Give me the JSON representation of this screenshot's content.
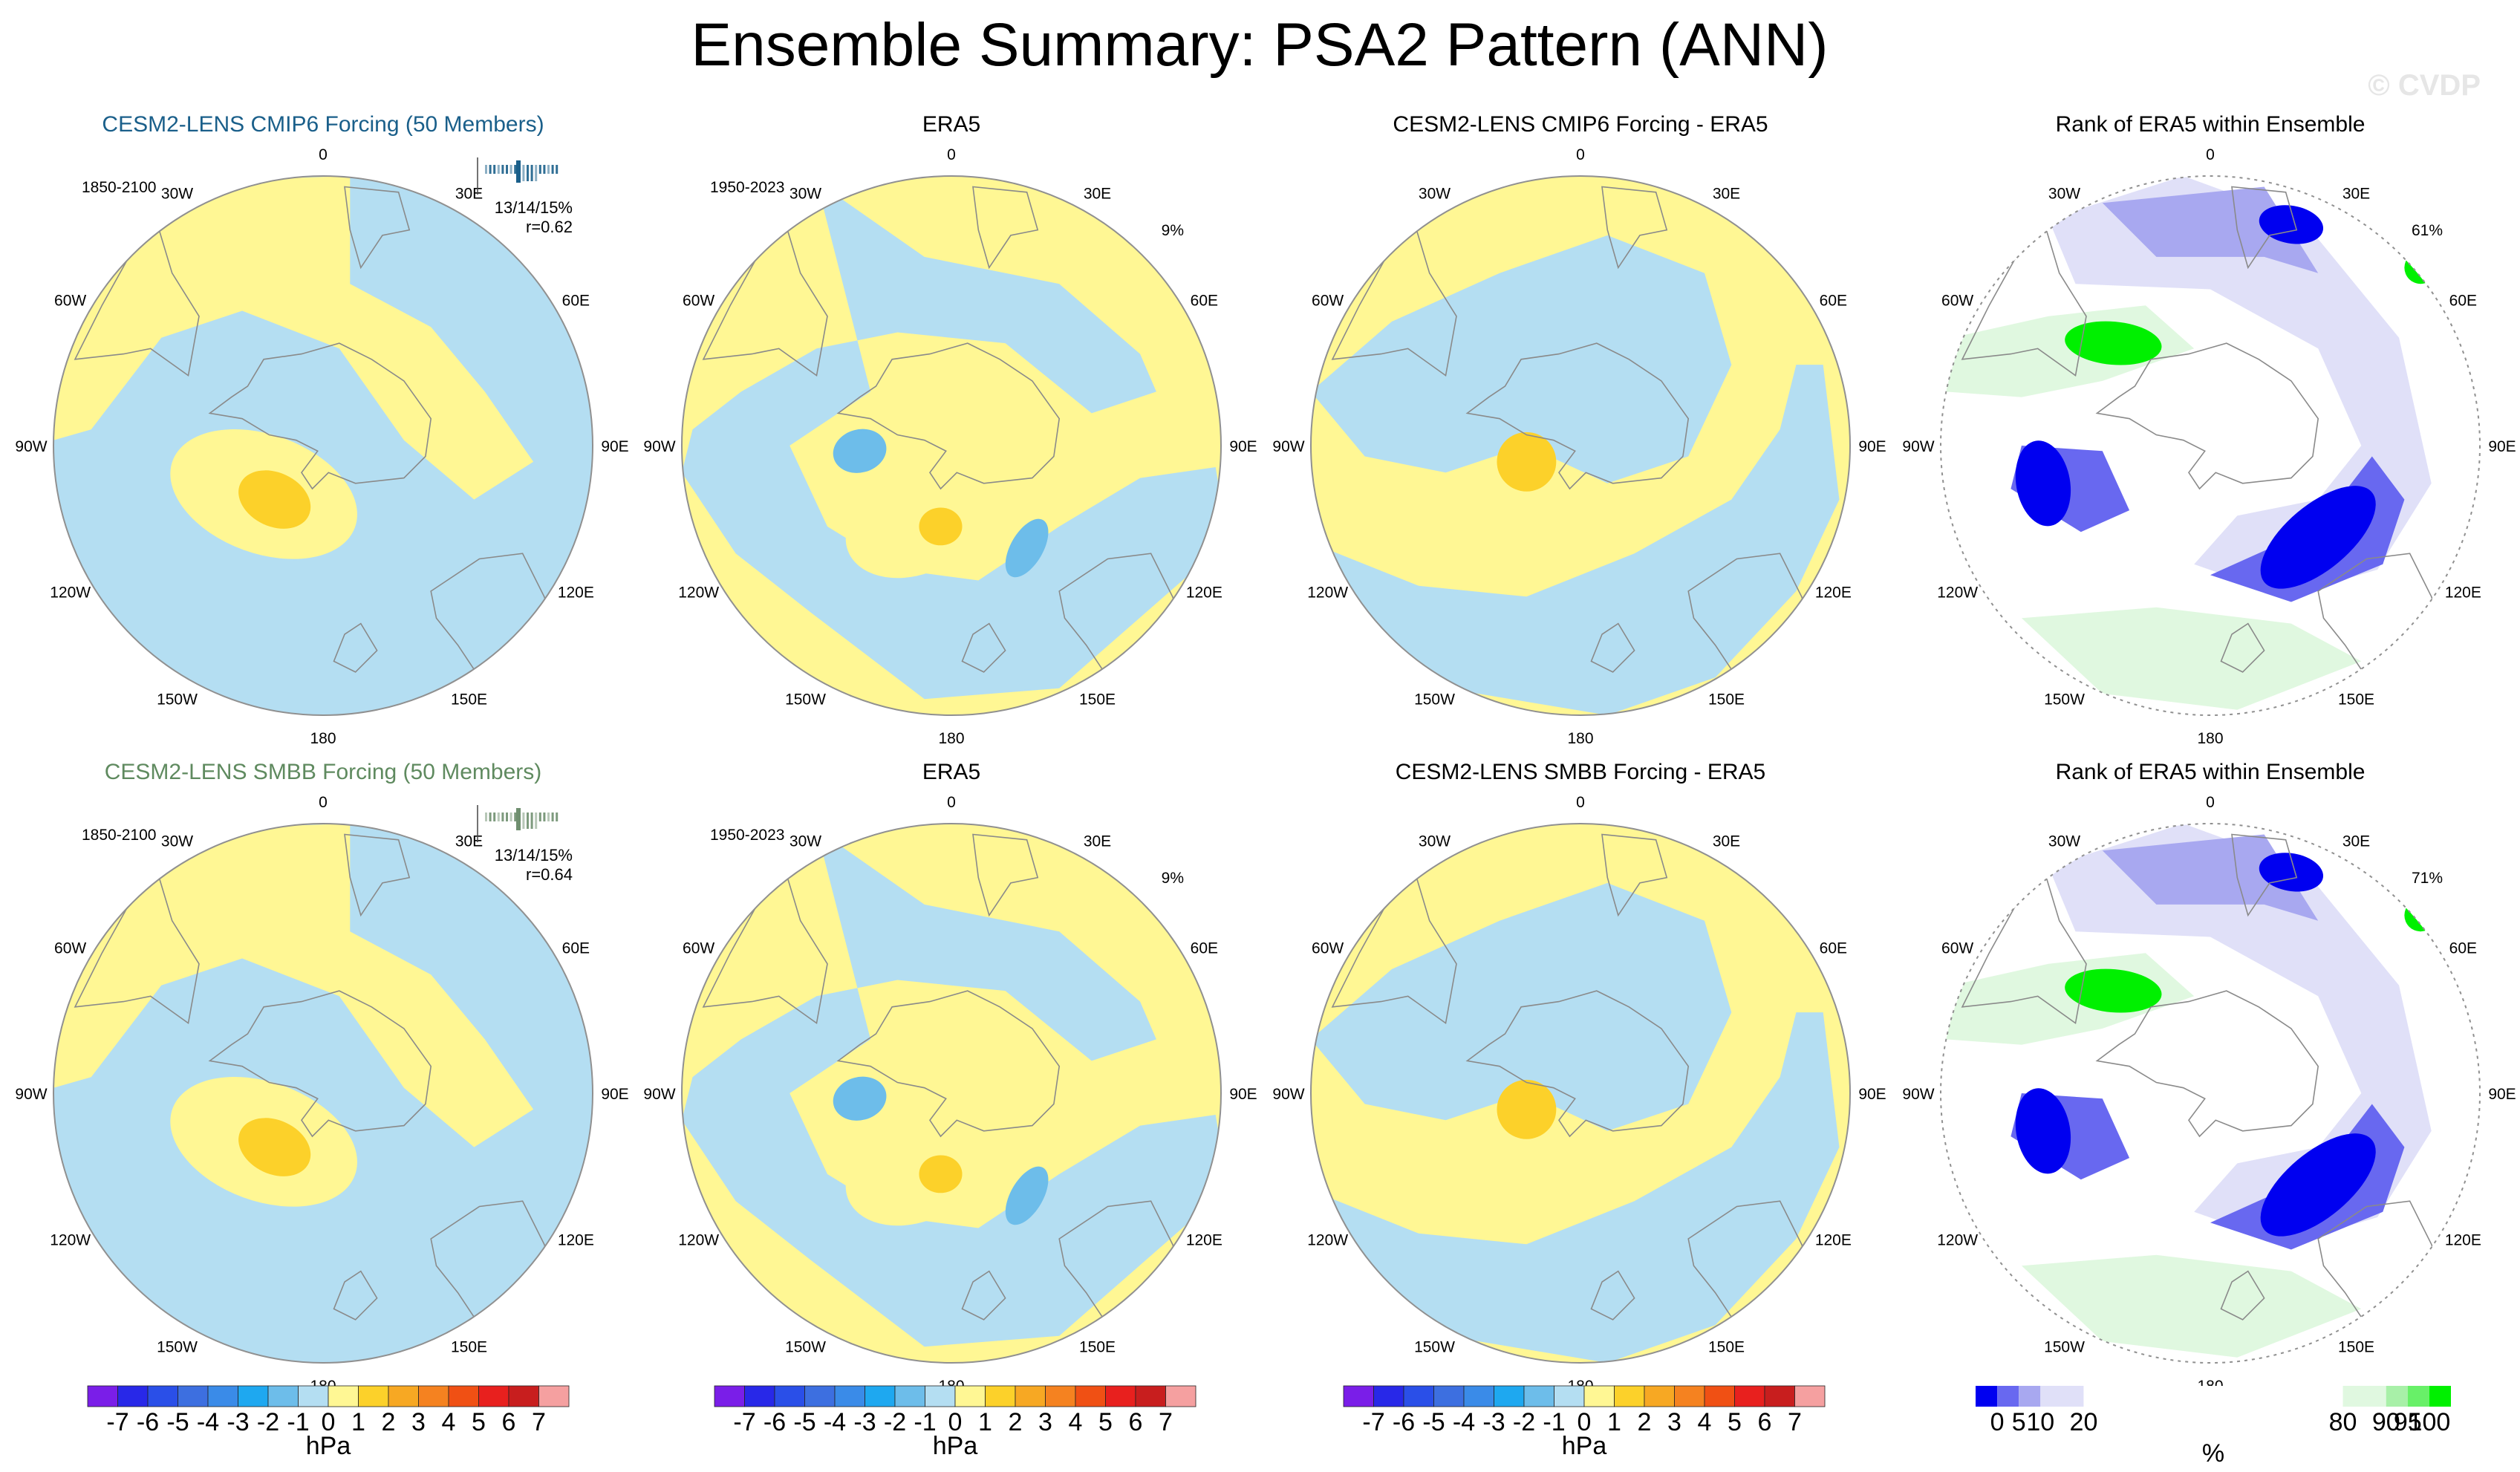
{
  "figure_title": "Ensemble Summary: PSA2 Pattern (ANN)",
  "watermark": "© CVDP",
  "lon_labels": [
    "0",
    "30E",
    "60E",
    "90E",
    "120E",
    "150E",
    "180",
    "150W",
    "120W",
    "90W",
    "60W",
    "30W"
  ],
  "colors": {
    "model1_title": "#1a5f8a",
    "model2_title": "#5f8a5f",
    "pos": "#fff794",
    "neg": "#b4def2",
    "pos_strong": "#fcd12a",
    "neg_strong": "#6dbdea",
    "coast": "#8a8a8a",
    "outline": "#909090"
  },
  "chart_data": [
    {
      "type": "map",
      "row": 0,
      "col": 0,
      "title": "CESM2-LENS CMIP6 Forcing (50 Members)",
      "title_color_key": "model1_title",
      "corner_left": "1850-2100",
      "pct_line": "13/14/15%",
      "corr_line": "r=0.62",
      "inset_color": "#1a5f8a"
    },
    {
      "type": "map",
      "row": 0,
      "col": 1,
      "title": "ERA5",
      "corner_left": "1950-2023",
      "corner_right": "9%"
    },
    {
      "type": "map",
      "row": 0,
      "col": 2,
      "title": "CESM2-LENS CMIP6 Forcing - ERA5"
    },
    {
      "type": "map",
      "row": 0,
      "col": 3,
      "title": "Rank of ERA5 within Ensemble",
      "corner_right": "61%"
    },
    {
      "type": "map",
      "row": 1,
      "col": 0,
      "title": "CESM2-LENS SMBB Forcing (50 Members)",
      "title_color_key": "model2_title",
      "corner_left": "1850-2100",
      "pct_line": "13/14/15%",
      "corr_line": "r=0.64",
      "inset_color": "#6f8f6f"
    },
    {
      "type": "map",
      "row": 1,
      "col": 1,
      "title": "ERA5",
      "corner_left": "1950-2023",
      "corner_right": "9%"
    },
    {
      "type": "map",
      "row": 1,
      "col": 2,
      "title": "CESM2-LENS SMBB Forcing - ERA5"
    },
    {
      "type": "map",
      "row": 1,
      "col": 3,
      "title": "Rank of ERA5 within Ensemble",
      "corner_right": "71%"
    },
    {
      "type": "colorbar",
      "name": "pressure",
      "unit": "hPa",
      "tick_labels": [
        "-7",
        "-6",
        "-5",
        "-4",
        "-3",
        "-2",
        "-1",
        "0",
        "1",
        "2",
        "3",
        "4",
        "5",
        "6",
        "7"
      ],
      "colors": [
        "#7a1ee8",
        "#2828e8",
        "#2a4fe8",
        "#3d6fe0",
        "#3a8be8",
        "#1ea8f0",
        "#6dbdea",
        "#b4def2",
        "#fff794",
        "#fcd12a",
        "#f7a823",
        "#f58220",
        "#f05014",
        "#e8201e",
        "#c81e1e",
        "#f5a0a0"
      ]
    },
    {
      "type": "colorbar",
      "name": "rank",
      "unit": "%",
      "tick_labels": [
        "0",
        "5",
        "10",
        "20",
        "80",
        "90",
        "95",
        "100"
      ],
      "tick_values": [
        0,
        5,
        10,
        20,
        80,
        90,
        95,
        100
      ],
      "colors": [
        "#0000f0",
        "#6868f0",
        "#a8a8f0",
        "#e0e0f8",
        "#ffffff",
        "#e0f8e0",
        "#a8f0a8",
        "#68f068",
        "#00f000"
      ],
      "bounds": [
        -5,
        0,
        5,
        10,
        20,
        80,
        90,
        95,
        100,
        105
      ]
    }
  ]
}
